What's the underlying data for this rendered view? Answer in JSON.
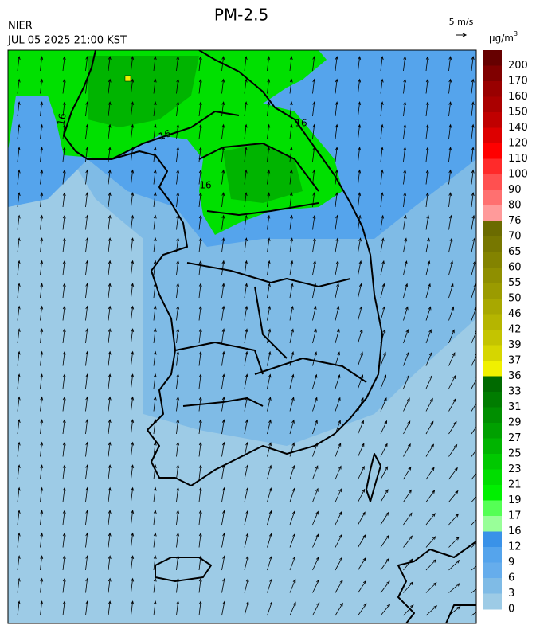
{
  "header": {
    "title": "PM-2.5",
    "agency": "NIER",
    "datetime": "JUL 05 2025 21:00 KST",
    "wind_scale": "5 m/s"
  },
  "map": {
    "contour_labels": [
      "16",
      "16",
      "16",
      "16"
    ]
  },
  "colorbar": {
    "unit": {
      "base": "μg/m",
      "exponent": "3"
    },
    "levels": [
      200,
      170,
      160,
      150,
      140,
      120,
      110,
      100,
      90,
      80,
      76,
      70,
      65,
      60,
      55,
      50,
      46,
      42,
      39,
      37,
      36,
      33,
      31,
      29,
      27,
      25,
      23,
      21,
      19,
      17,
      16,
      12,
      9,
      6,
      3,
      0
    ],
    "colors": [
      "#660000",
      "#800000",
      "#990000",
      "#aa0000",
      "#c00000",
      "#dd0000",
      "#ff0000",
      "#ff2a2a",
      "#ff5050",
      "#ff7070",
      "#ff9a9a",
      "#6b6b00",
      "#777700",
      "#838300",
      "#8f8f00",
      "#9b9b00",
      "#a8a800",
      "#b5b500",
      "#c4c400",
      "#d6d600",
      "#f0f000",
      "#006a00",
      "#007c00",
      "#008e00",
      "#00a000",
      "#00b400",
      "#00c800",
      "#00dd00",
      "#00f000",
      "#55ff55",
      "#99ff99",
      "#3a92e8",
      "#55a4ec",
      "#66adec",
      "#7fbbe6",
      "#9dcbe6"
    ]
  }
}
